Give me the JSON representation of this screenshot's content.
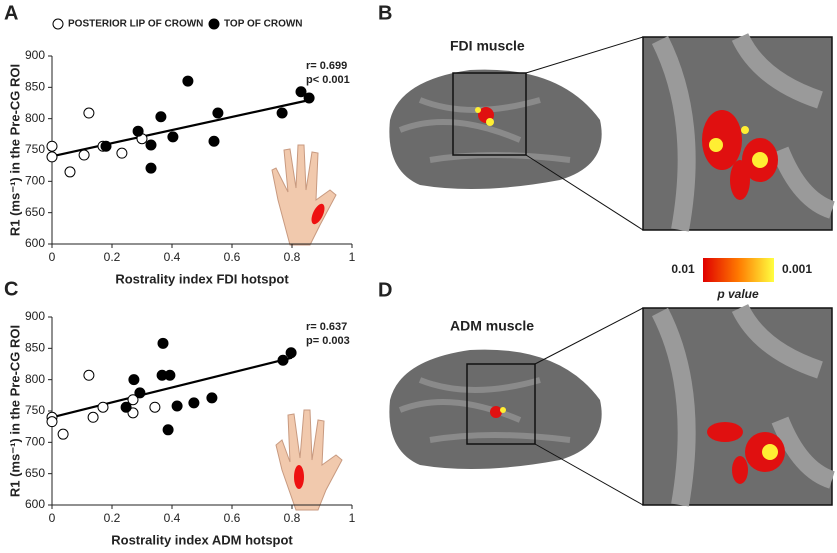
{
  "chart_data": [
    {
      "type": "scatter",
      "panel_label": "A",
      "x_label": "Rostrality index FDI  hotspot",
      "y_label": "R1 (ms⁻¹) in the Pre-CG ROI",
      "xlim": [
        0,
        1
      ],
      "ylim": [
        600,
        900
      ],
      "xticks": [
        0,
        0.2,
        0.4,
        0.6,
        0.8,
        1
      ],
      "yticks": [
        600,
        650,
        700,
        750,
        800,
        850,
        900
      ],
      "series": [
        {
          "name": "POSTERIOR LIP OF CROWN",
          "color": "#ffffff",
          "marker": "open",
          "x": [
            0,
            0,
            0.06,
            0.107,
            0.123,
            0.17,
            0.233,
            0.3
          ],
          "values": [
            756,
            739,
            715,
            742,
            809,
            756,
            745,
            768
          ]
        },
        {
          "name": "TOP OF CROWN",
          "color": "#000000",
          "marker": "filled",
          "x": [
            0.18,
            0.287,
            0.363,
            0.33,
            0.33,
            0.403,
            0.453,
            0.54,
            0.553,
            0.767,
            0.83,
            0.857
          ],
          "values": [
            756,
            780,
            803,
            758,
            721,
            771,
            860,
            764,
            809,
            809,
            843,
            833
          ]
        }
      ],
      "fit": {
        "x": [
          0,
          0.87
        ],
        "values": [
          740,
          831
        ]
      },
      "annotations": [
        "r= 0.699",
        "p< 0.001"
      ]
    },
    {
      "type": "scatter",
      "panel_label": "C",
      "x_label": "Rostrality index ADM  hotspot",
      "y_label": "R1 (ms⁻¹) in the Pre-CG ROI",
      "xlim": [
        0,
        1
      ],
      "ylim": [
        600,
        900
      ],
      "xticks": [
        0,
        0.2,
        0.4,
        0.6,
        0.8,
        1
      ],
      "yticks": [
        600,
        650,
        700,
        750,
        800,
        850,
        900
      ],
      "series": [
        {
          "color": "#ffffff",
          "marker": "open",
          "x": [
            0,
            0,
            0.037,
            0.123,
            0.137,
            0.17,
            0.27,
            0.27,
            0.343
          ],
          "values": [
            740,
            733,
            713,
            807,
            740,
            756,
            768,
            747,
            756
          ]
        },
        {
          "color": "#000000",
          "marker": "filled",
          "x": [
            0.247,
            0.273,
            0.293,
            0.367,
            0.37,
            0.393,
            0.387,
            0.417,
            0.473,
            0.533,
            0.77,
            0.797
          ],
          "values": [
            756,
            800,
            779,
            807,
            858,
            807,
            720,
            758,
            763,
            771,
            831,
            843
          ]
        }
      ],
      "fit": {
        "x": [
          0,
          0.8
        ],
        "values": [
          740,
          835
        ]
      },
      "annotations": [
        "r= 0.637",
        "p= 0.003"
      ]
    }
  ],
  "panels": {
    "B": {
      "label": "B",
      "title": "FDI muscle"
    },
    "D": {
      "label": "D",
      "title": "ADM muscle"
    }
  },
  "colorbar": {
    "low": "0.01",
    "high": "0.001",
    "title": "p value"
  }
}
